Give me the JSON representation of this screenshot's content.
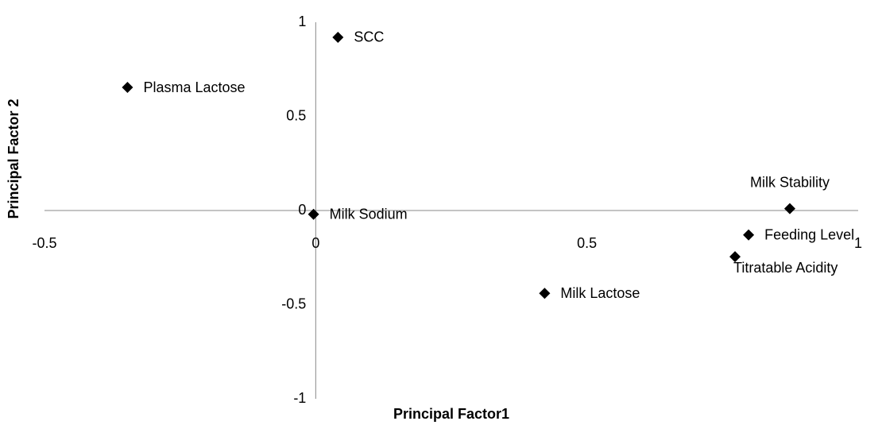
{
  "chart_data": {
    "type": "scatter",
    "x_label": "Principal Factor1",
    "y_label": "Principal Factor 2",
    "labels": [
      "SCC",
      "Plasma Lactose",
      "Milk Sodium",
      "Milk Stability",
      "Feeding Level",
      "Titratable Acidity",
      "Milk Lactose"
    ],
    "x": [
      0.041,
      -0.347,
      -0.004,
      0.874,
      0.798,
      0.773,
      0.422
    ],
    "values": [
      0.92,
      0.654,
      -0.02,
      0.01,
      -0.13,
      -0.245,
      -0.44
    ],
    "color": "#000000",
    "xlim": [
      -0.5,
      1
    ],
    "ylim": [
      -1,
      1
    ],
    "xticks": [
      -0.5,
      0,
      0.5,
      1
    ],
    "yticks": [
      -1,
      -0.5,
      0,
      0.5,
      1
    ]
  }
}
